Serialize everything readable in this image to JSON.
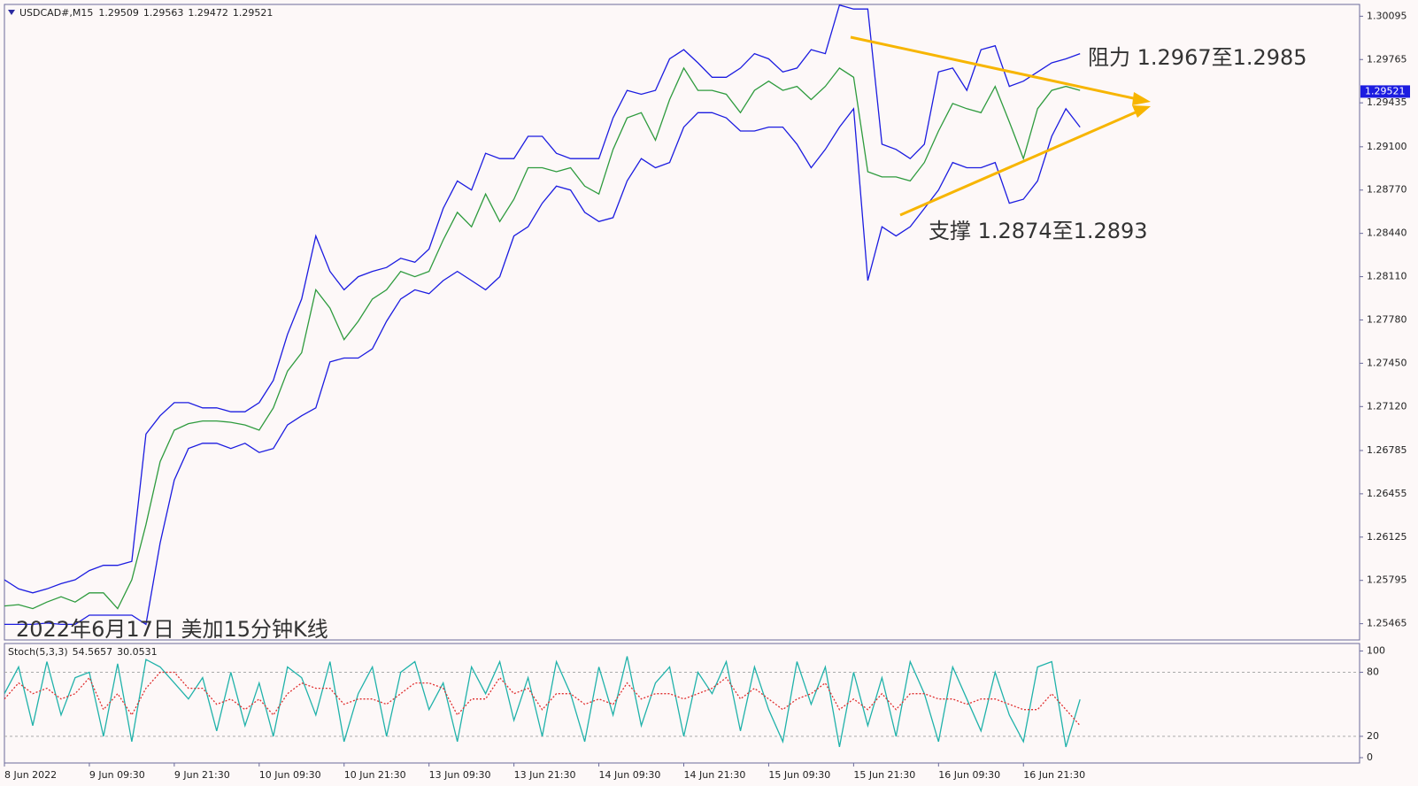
{
  "chart_data": [
    {
      "type": "line",
      "symbol": "USDCAD#,M15",
      "ohlc": [
        1.29509,
        1.29563,
        1.29472,
        1.29521
      ],
      "title": "2022年6月17日 美加15分钟K线",
      "annotations": [
        "阻力 1.2967至1.2985",
        "支撑 1.2874至1.2893"
      ],
      "x": [
        0,
        2,
        4,
        6,
        8,
        10,
        12,
        14,
        16,
        18,
        20,
        22,
        24,
        26,
        28,
        30,
        32,
        34,
        36,
        38,
        40,
        42,
        44,
        46,
        48,
        50,
        52,
        54,
        56,
        58,
        60,
        62,
        64,
        66,
        68,
        70,
        72,
        74,
        76,
        78,
        80,
        82,
        84,
        86,
        88,
        90,
        92,
        94,
        96,
        98,
        100,
        102,
        104,
        106,
        108,
        110,
        112,
        114,
        116,
        118,
        120,
        122,
        124,
        126,
        128,
        130,
        132,
        134,
        136,
        138,
        140,
        142,
        144,
        146,
        148,
        150,
        152
      ],
      "xlim": [
        0,
        191.5
      ],
      "ylim": [
        1.25341,
        1.30185
      ],
      "yticks": [
        1.30095,
        1.29765,
        1.29435,
        {
          "value": 1.291,
          "label": "1.29100"
        },
        {
          "value": 1.2877,
          "label": "1.28770"
        },
        {
          "value": 1.2844,
          "label": "1.28440"
        },
        {
          "value": 1.2811,
          "label": "1.28110"
        },
        {
          "value": 1.2778,
          "label": "1.27780"
        },
        {
          "value": 1.2745,
          "label": "1.27450"
        },
        {
          "value": 1.2712,
          "label": "1.27120"
        },
        1.26785,
        1.26455,
        1.26125,
        1.25795,
        1.25465
      ],
      "series": [
        {
          "color": "#1c1ce0",
          "values": [
            1.258,
            1.2573,
            1.257,
            1.2573,
            1.2577,
            1.258,
            1.2587,
            1.2591,
            1.2591,
            1.2594,
            1.2691,
            1.2705,
            1.2715,
            1.2715,
            1.2711,
            1.2711,
            1.2708,
            1.2708,
            1.2715,
            1.2732,
            1.2767,
            1.2794,
            1.2842,
            1.2815,
            1.2801,
            1.2811,
            1.2815,
            1.2818,
            1.2825,
            1.2822,
            1.2832,
            1.2863,
            1.2884,
            1.2877,
            1.2905,
            1.2901,
            1.2901,
            1.2918,
            1.2918,
            1.2905,
            1.2901,
            1.2901,
            1.2901,
            1.2932,
            1.2953,
            1.295,
            1.2953,
            1.2977,
            1.2984,
            1.2974,
            1.2963,
            1.2963,
            1.297,
            1.2981,
            1.2977,
            1.2967,
            1.297,
            1.2984,
            1.2981,
            1.3018,
            1.3015,
            1.3015,
            1.2912,
            1.2908,
            1.2901,
            1.2912,
            1.2967,
            1.297,
            1.2953,
            1.2984,
            1.2987,
            1.2956,
            1.296,
            1.2967,
            1.2974,
            1.2977,
            1.2981
          ]
        },
        {
          "color": "#1c1ce0",
          "values": [
            1.2546,
            1.2546,
            1.2546,
            1.2547,
            1.2546,
            1.2546,
            1.2553,
            1.2553,
            1.2553,
            1.2553,
            1.2546,
            1.2608,
            1.2656,
            1.268,
            1.2684,
            1.2684,
            1.268,
            1.2684,
            1.2677,
            1.268,
            1.2698,
            1.2705,
            1.2711,
            1.2746,
            1.2749,
            1.2749,
            1.2756,
            1.2777,
            1.2794,
            1.2801,
            1.2798,
            1.2808,
            1.2815,
            1.2808,
            1.2801,
            1.2811,
            1.2842,
            1.2849,
            1.2867,
            1.288,
            1.2877,
            1.286,
            1.2853,
            1.2856,
            1.2884,
            1.2901,
            1.2894,
            1.2898,
            1.2925,
            1.2936,
            1.2936,
            1.2932,
            1.2922,
            1.2922,
            1.2925,
            1.2925,
            1.2912,
            1.2894,
            1.2908,
            1.2925,
            1.2939,
            1.2808,
            1.2849,
            1.2842,
            1.2849,
            1.2863,
            1.2877,
            1.2898,
            1.2894,
            1.2894,
            1.2898,
            1.2867,
            1.287,
            1.2884,
            1.2918,
            1.2939,
            1.2925
          ]
        },
        {
          "color": "#2e9b3e",
          "values": [
            1.256,
            1.2561,
            1.2558,
            1.2563,
            1.2567,
            1.2563,
            1.257,
            1.257,
            1.2558,
            1.258,
            1.2622,
            1.267,
            1.2694,
            1.2699,
            1.2701,
            1.2701,
            1.27,
            1.2698,
            1.2694,
            1.2711,
            1.2739,
            1.2753,
            1.2801,
            1.2787,
            1.2763,
            1.2777,
            1.2794,
            1.2801,
            1.2815,
            1.2811,
            1.2815,
            1.2839,
            1.286,
            1.2849,
            1.2874,
            1.2853,
            1.287,
            1.2894,
            1.2894,
            1.2891,
            1.2894,
            1.288,
            1.2874,
            1.2908,
            1.2932,
            1.2936,
            1.2915,
            1.2946,
            1.297,
            1.2953,
            1.2953,
            1.295,
            1.2936,
            1.2953,
            1.296,
            1.2953,
            1.2956,
            1.2946,
            1.2956,
            1.297,
            1.2963,
            1.2891,
            1.2887,
            1.2887,
            1.2884,
            1.2898,
            1.2922,
            1.2943,
            1.2939,
            1.2936,
            1.2956,
            1.2929,
            1.2901,
            1.2939,
            1.2953,
            1.2956,
            1.2953
          ]
        }
      ]
    },
    {
      "type": "line",
      "indicator": "Stoch(5,3,3)",
      "indicator_values": [
        54.5657,
        30.0531
      ],
      "x": [
        0,
        2,
        4,
        6,
        8,
        10,
        12,
        14,
        16,
        18,
        20,
        22,
        24,
        26,
        28,
        30,
        32,
        34,
        36,
        38,
        40,
        42,
        44,
        46,
        48,
        50,
        52,
        54,
        56,
        58,
        60,
        62,
        64,
        66,
        68,
        70,
        72,
        74,
        76,
        78,
        80,
        82,
        84,
        86,
        88,
        90,
        92,
        94,
        96,
        98,
        100,
        102,
        104,
        106,
        108,
        110,
        112,
        114,
        116,
        118,
        120,
        122,
        124,
        126,
        128,
        130,
        132,
        134,
        136,
        138,
        140,
        142,
        144,
        146,
        148,
        150,
        152
      ],
      "xlim": [
        0,
        191.5
      ],
      "ylim": [
        -5,
        107
      ],
      "yticks": [
        0,
        20,
        80,
        100
      ],
      "levels": [
        20,
        80
      ],
      "xticks": [
        {
          "value": 0,
          "label": "8 Jun 2022"
        },
        {
          "value": 12,
          "label": "9 Jun 09:30"
        },
        {
          "value": 24,
          "label": "9 Jun 21:30"
        },
        {
          "value": 36,
          "label": "10 Jun 09:30"
        },
        {
          "value": 48,
          "label": "10 Jun 21:30"
        },
        {
          "value": 60,
          "label": "13 Jun 09:30"
        },
        {
          "value": 72,
          "label": "13 Jun 21:30"
        },
        {
          "value": 84,
          "label": "14 Jun 09:30"
        },
        {
          "value": 96,
          "label": "14 Jun 21:30"
        },
        {
          "value": 108,
          "label": "15 Jun 09:30"
        },
        {
          "value": 120,
          "label": "15 Jun 21:30"
        },
        {
          "value": 132,
          "label": "16 Jun 09:30"
        },
        {
          "value": 144,
          "label": "16 Jun 21:30"
        }
      ],
      "series": [
        {
          "color": "#20b2aa",
          "values": [
            60,
            85,
            30,
            90,
            40,
            75,
            80,
            20,
            88,
            15,
            92,
            85,
            70,
            55,
            75,
            25,
            80,
            30,
            70,
            20,
            85,
            75,
            40,
            90,
            15,
            60,
            85,
            20,
            80,
            90,
            45,
            70,
            15,
            85,
            60,
            90,
            35,
            75,
            20,
            90,
            60,
            15,
            85,
            40,
            95,
            30,
            70,
            85,
            20,
            80,
            60,
            90,
            25,
            85,
            45,
            15,
            90,
            50,
            85,
            10,
            80,
            30,
            75,
            20,
            90,
            60,
            15,
            85,
            55,
            25,
            80,
            40,
            15,
            85,
            90,
            10,
            54.5657
          ]
        },
        {
          "color": "#e03030",
          "dash": true,
          "values": [
            55,
            70,
            60,
            65,
            55,
            60,
            75,
            45,
            60,
            40,
            65,
            80,
            80,
            65,
            65,
            50,
            55,
            45,
            55,
            40,
            60,
            70,
            65,
            65,
            50,
            55,
            55,
            50,
            60,
            70,
            70,
            65,
            40,
            55,
            55,
            75,
            60,
            65,
            45,
            60,
            60,
            50,
            55,
            50,
            70,
            55,
            60,
            60,
            55,
            60,
            65,
            75,
            55,
            65,
            55,
            45,
            55,
            60,
            70,
            45,
            55,
            45,
            60,
            45,
            60,
            60,
            55,
            55,
            50,
            55,
            55,
            50,
            45,
            45,
            60,
            45,
            30.0531
          ]
        }
      ]
    }
  ]
}
